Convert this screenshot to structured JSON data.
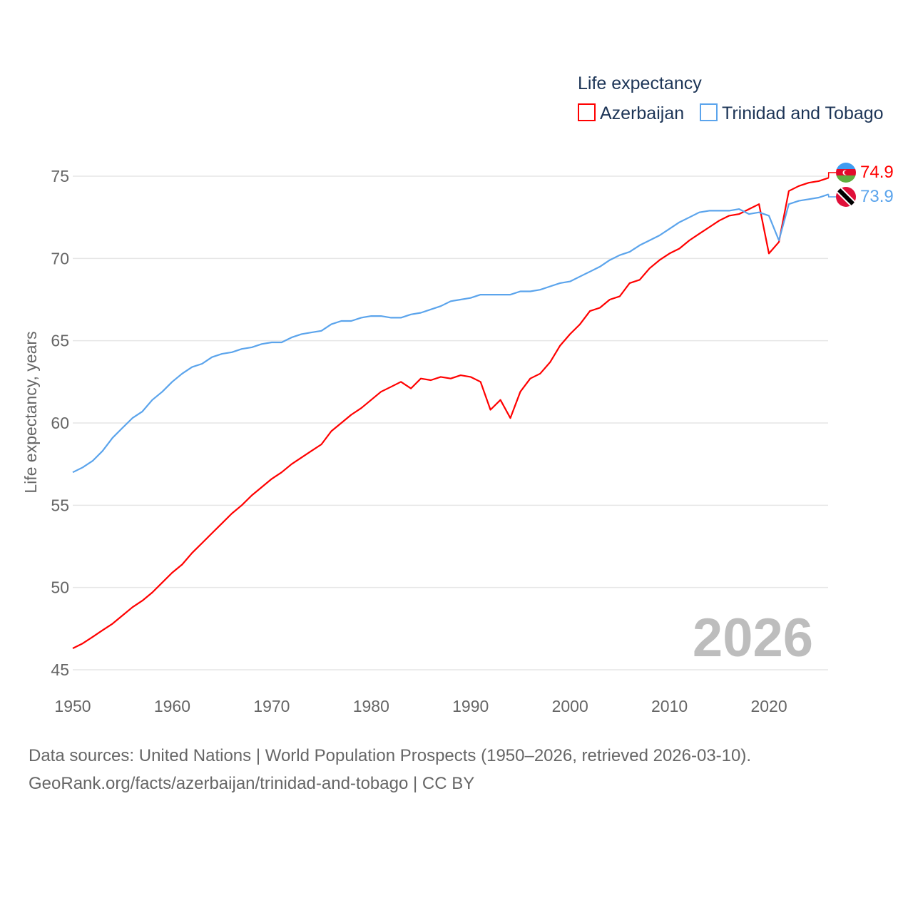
{
  "chart_data": {
    "type": "line",
    "legend_title": "Life expectancy",
    "ylabel": "Life expectancy, years",
    "xlabel": "",
    "xlim": [
      1950,
      2026
    ],
    "ylim": [
      45,
      75
    ],
    "x_ticks": [
      "1950",
      "1960",
      "1970",
      "1980",
      "1990",
      "2000",
      "2010",
      "2020"
    ],
    "y_ticks": [
      "45",
      "50",
      "55",
      "60",
      "65",
      "70",
      "75"
    ],
    "grid": true,
    "legend_position": "top-right",
    "year_label": "2026",
    "x_start": 1950,
    "series": [
      {
        "name": "Azerbaijan",
        "color": "#ff0000",
        "end_label": "74.9",
        "flag": "azerbaijan-flag",
        "values": [
          46.3,
          46.6,
          47.0,
          47.4,
          47.8,
          48.3,
          48.8,
          49.2,
          49.7,
          50.3,
          50.9,
          51.4,
          52.1,
          52.7,
          53.3,
          53.9,
          54.5,
          55.0,
          55.6,
          56.1,
          56.6,
          57.0,
          57.5,
          57.9,
          58.3,
          58.7,
          59.5,
          60.0,
          60.5,
          60.9,
          61.4,
          61.9,
          62.2,
          62.5,
          62.1,
          62.7,
          62.6,
          62.8,
          62.7,
          62.9,
          62.8,
          62.5,
          60.8,
          61.4,
          60.3,
          61.9,
          62.7,
          63.0,
          63.7,
          64.7,
          65.4,
          66.0,
          66.8,
          67.0,
          67.5,
          67.7,
          68.5,
          68.7,
          69.4,
          69.9,
          70.3,
          70.6,
          71.1,
          71.5,
          71.9,
          72.3,
          72.6,
          72.7,
          73.0,
          73.3,
          70.3,
          71.0,
          74.1,
          74.4,
          74.6,
          74.7,
          74.9
        ]
      },
      {
        "name": "Trinidad and Tobago",
        "color": "#5ba4ec",
        "end_label": "73.9",
        "flag": "trinidad-and-tobago-flag",
        "values": [
          57.0,
          57.3,
          57.7,
          58.3,
          59.1,
          59.7,
          60.3,
          60.7,
          61.4,
          61.9,
          62.5,
          63.0,
          63.4,
          63.6,
          64.0,
          64.2,
          64.3,
          64.5,
          64.6,
          64.8,
          64.9,
          64.9,
          65.2,
          65.4,
          65.5,
          65.6,
          66.0,
          66.2,
          66.2,
          66.4,
          66.5,
          66.5,
          66.4,
          66.4,
          66.6,
          66.7,
          66.9,
          67.1,
          67.4,
          67.5,
          67.6,
          67.8,
          67.8,
          67.8,
          67.8,
          68.0,
          68.0,
          68.1,
          68.3,
          68.5,
          68.6,
          68.9,
          69.2,
          69.5,
          69.9,
          70.2,
          70.4,
          70.8,
          71.1,
          71.4,
          71.8,
          72.2,
          72.5,
          72.8,
          72.9,
          72.9,
          72.9,
          73.0,
          72.7,
          72.8,
          72.6,
          71.1,
          73.3,
          73.5,
          73.6,
          73.7,
          73.9
        ]
      }
    ]
  },
  "footer": {
    "sources": "Data sources: United Nations | World Population Prospects (1950–2026, retrieved 2026-03-10).",
    "link": "GeoRank.org/facts/azerbaijan/trinidad-and-tobago | CC BY"
  }
}
